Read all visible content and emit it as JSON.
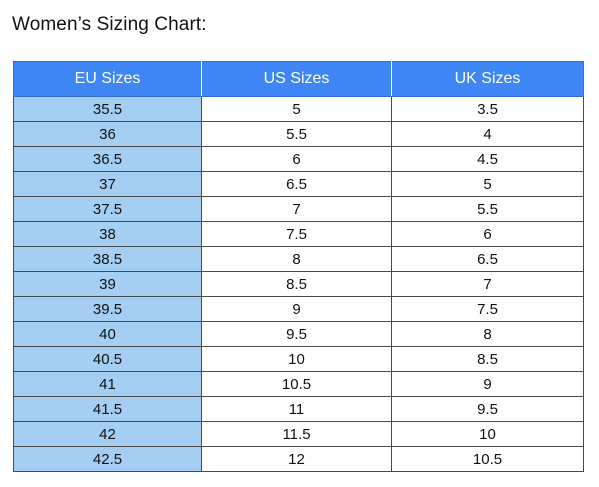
{
  "title": "Women’s Sizing Chart:",
  "table": {
    "headers": [
      "EU Sizes",
      "US Sizes",
      "UK Sizes"
    ],
    "rows": [
      [
        "35.5",
        "5",
        "3.5"
      ],
      [
        "36",
        "5.5",
        "4"
      ],
      [
        "36.5",
        "6",
        "4.5"
      ],
      [
        "37",
        "6.5",
        "5"
      ],
      [
        "37.5",
        "7",
        "5.5"
      ],
      [
        "38",
        "7.5",
        "6"
      ],
      [
        "38.5",
        "8",
        "6.5"
      ],
      [
        "39",
        "8.5",
        "7"
      ],
      [
        "39.5",
        "9",
        "7.5"
      ],
      [
        "40",
        "9.5",
        "8"
      ],
      [
        "40.5",
        "10",
        "8.5"
      ],
      [
        "41",
        "10.5",
        "9"
      ],
      [
        "41.5",
        "11",
        "9.5"
      ],
      [
        "42",
        "11.5",
        "10"
      ],
      [
        "42.5",
        "12",
        "10.5"
      ]
    ]
  },
  "colors": {
    "header_background": "#3f86f5",
    "header_text": "#ffffff",
    "eu_column_background": "#a4cff3",
    "cell_background": "#ffffff",
    "border": "#4a4a4a"
  }
}
